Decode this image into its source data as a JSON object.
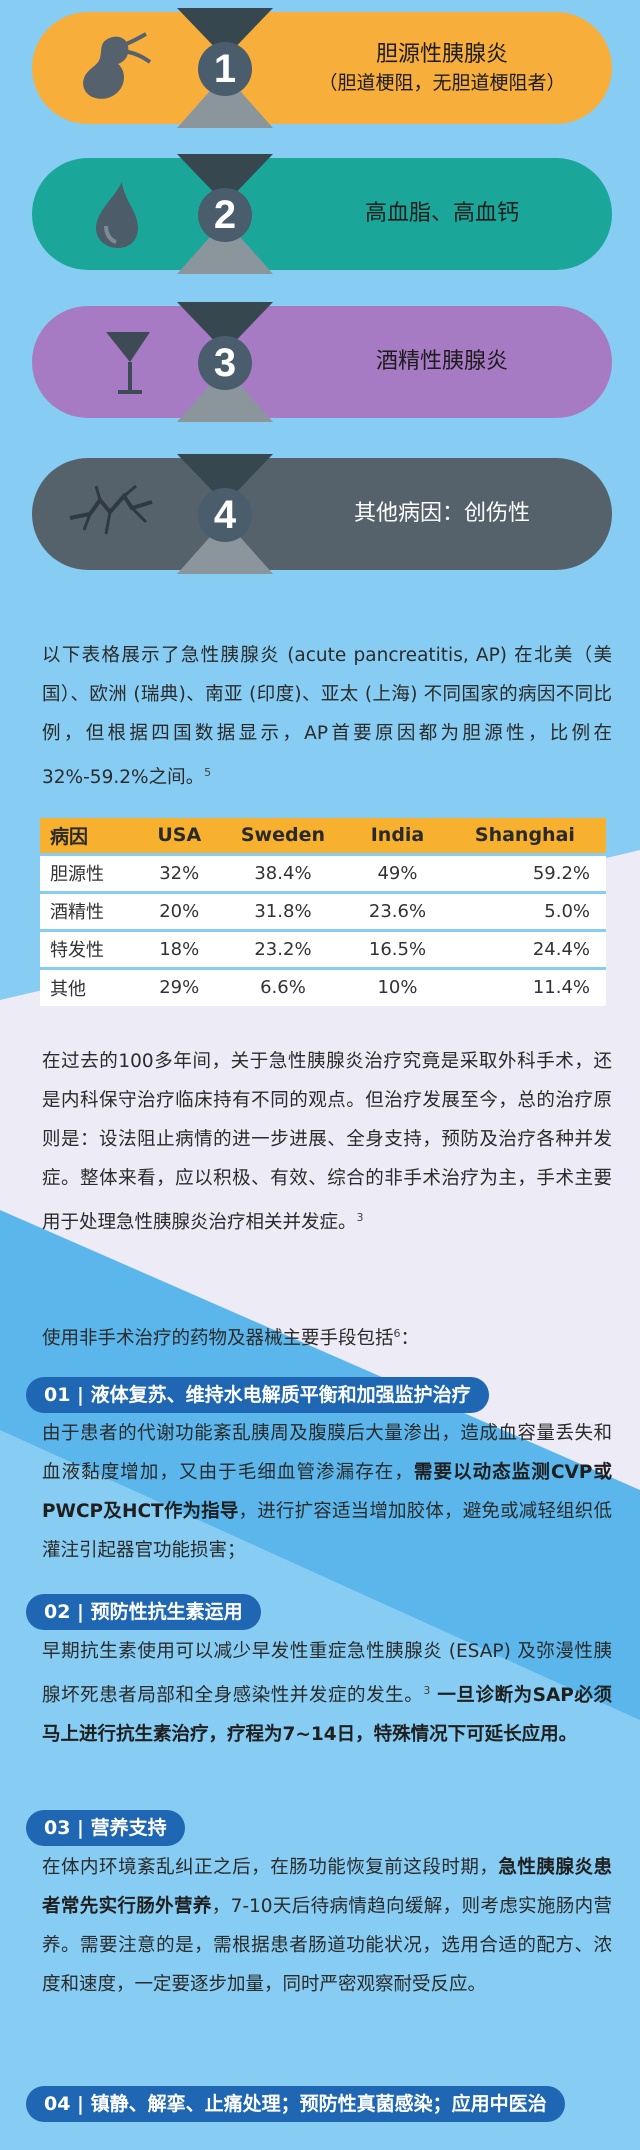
{
  "causes": [
    {
      "num": "1",
      "title": "胆源性胰腺炎",
      "subtitle": "（胆道梗阻，无胆道梗阻者）",
      "color": "#f7ae3b",
      "icon": "gallbladder-icon"
    },
    {
      "num": "2",
      "title": "高血脂、高血钙",
      "subtitle": "",
      "color": "#1aa79a",
      "icon": "drop-icon"
    },
    {
      "num": "3",
      "title": "酒精性胰腺炎",
      "subtitle": "",
      "color": "#a77ac4",
      "icon": "cocktail-glass-icon"
    },
    {
      "num": "4",
      "title": "其他病因：创伤性",
      "subtitle": "",
      "color": "#56626b",
      "icon": "crack-icon"
    }
  ],
  "intro": {
    "text": "以下表格展示了急性胰腺炎 (acute pancreatitis, AP) 在北美（美国）、欧洲 (瑞典)、南亚 (印度)、亚太 (上海) 不同国家的病因不同比例，但根据四国数据显示，AP首要原因都为胆源性，比例在32%-59.2%之间。",
    "ref": "5"
  },
  "table": {
    "headers": [
      "病因",
      "USA",
      "Sweden",
      "India",
      "Shanghai"
    ],
    "rows": [
      [
        "胆源性",
        "32%",
        "38.4%",
        "49%",
        "59.2%"
      ],
      [
        "酒精性",
        "20%",
        "31.8%",
        "23.6%",
        "5.0%"
      ],
      [
        "特发性",
        "18%",
        "23.2%",
        "16.5%",
        "24.4%"
      ],
      [
        "其他",
        "29%",
        "6.6%",
        "10%",
        "11.4%"
      ]
    ]
  },
  "history": {
    "text": "在过去的100多年间，关于急性胰腺炎治疗究竟是采取外科手术，还是内科保守治疗临床持有不同的观点。但治疗发展至今，总的治疗原则是：设法阻止病情的进一步进展、全身支持，预防及治疗各种并发症。整体来看，应以积极、有效、综合的非手术治疗为主，手术主要用于处理急性胰腺炎治疗相关并发症。",
    "ref": "3"
  },
  "means_intro": {
    "text": "使用非手术治疗的药物及器械主要手段包括",
    "ref": "6",
    "suffix": "："
  },
  "sections": [
    {
      "tag": "01 | 液体复苏、维持水电解质平衡和加强监护治疗",
      "p1": "由于患者的代谢功能紊乱胰周及腹膜后大量渗出，造成血容量丢失和血液黏度增加，又由于毛细血管渗漏存在，",
      "b1": "需要以动态监测CVP或PWCP及HCT作为指导",
      "p2": "，进行扩容适当增加胶体，避免或减轻组织低灌注引起器官功能损害；"
    },
    {
      "tag": "02 | 预防性抗生素运用",
      "p1": "早期抗生素使用可以减少早发性重症急性胰腺炎 (ESAP) 及弥漫性胰腺坏死患者局部和全身感染性并发症的发生。",
      "ref": "3",
      "b1": " 一旦诊断为SAP必须马上进行抗生素治疗，疗程为7~14日，特殊情况下可延长应用。"
    },
    {
      "tag": "03 | 营养支持",
      "p1": "在体内环境紊乱纠正之后，在肠功能恢复前这段时期，",
      "b1": "急性胰腺炎患者常先实行肠外营养",
      "p2": "，7-10天后待病情趋向缓解，则考虑实施肠内营养。需要注意的是，需根据患者肠道功能状况，选用合适的配方、浓度和速度，一定要逐步加量，同时严密观察耐受反应。"
    },
    {
      "tag": "04 | 镇静、解挛、止痛处理；预防性真菌感染；应用中医治"
    }
  ]
}
